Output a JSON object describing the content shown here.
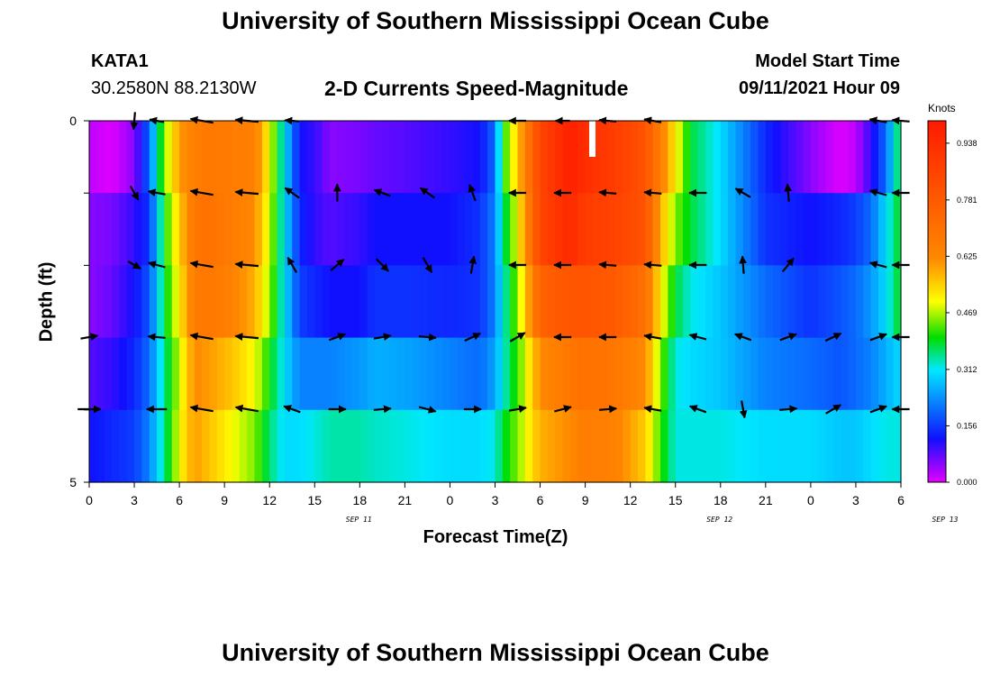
{
  "header": {
    "title": "University of Southern Mississippi Ocean Cube",
    "footer_title": "University of Southern Mississippi Ocean Cube",
    "station": "KATA1",
    "coordinates": "30.2580N  88.2130W",
    "plot_title": "2-D Currents Speed-Magnitude",
    "model_start_label": "Model Start Time",
    "model_start_value": "09/11/2021 Hour 09"
  },
  "colors": {
    "magenta": "#e000ff",
    "blue": "#1010ff",
    "cyan": "#00e8ff",
    "green": "#00dd00",
    "yellow": "#ffff00",
    "orange": "#ff8800",
    "red": "#ff1a00"
  },
  "chart_data": {
    "type": "heatmap",
    "title": "2-D Currents Speed-Magnitude",
    "xlabel": "Forecast Time(Z)",
    "ylabel": "Depth (ft)",
    "units": "Knots",
    "ylim": [
      0,
      5
    ],
    "y_tick_labels": [
      "0",
      "5"
    ],
    "x_tick_labels": [
      "0",
      "3",
      "6",
      "9",
      "12",
      "15",
      "18",
      "21",
      "0",
      "3",
      "6",
      "9",
      "12",
      "15",
      "18",
      "21",
      "0",
      "3",
      "6"
    ],
    "date_labels": [
      {
        "hour_index": 12,
        "label": "SEP 11"
      },
      {
        "hour_index": 36,
        "label": "SEP 12"
      },
      {
        "hour_index": 60,
        "label": "SEP 13"
      }
    ],
    "x_range_hours": [
      0,
      54
    ],
    "colorbar": {
      "range": [
        0,
        1.0
      ],
      "tick_labels": [
        "0.938",
        "0.781",
        "0.625",
        "0.469",
        "0.312",
        "0.156",
        "0.000"
      ],
      "tick_values": [
        0.938,
        0.781,
        0.625,
        0.469,
        0.312,
        0.156,
        0.0
      ]
    },
    "depth_levels": 5,
    "time_keypoints": [
      0,
      1.5,
      3,
      4,
      5,
      6,
      7,
      8,
      9.5,
      11,
      12,
      13,
      14,
      15,
      16,
      18,
      19,
      21,
      24,
      26,
      27,
      27.5,
      28.5,
      30,
      32,
      33,
      35,
      37,
      38,
      39,
      40,
      42,
      45,
      48,
      50,
      51,
      52,
      53,
      54
    ],
    "speed": [
      [
        0.02,
        0.0,
        0.05,
        0.2,
        0.45,
        0.6,
        0.65,
        0.68,
        0.66,
        0.65,
        0.5,
        0.3,
        0.12,
        0.1,
        0.05,
        0.06,
        0.07,
        0.08,
        0.1,
        0.12,
        0.2,
        0.4,
        0.55,
        0.85,
        0.98,
        0.93,
        0.88,
        0.8,
        0.65,
        0.52,
        0.38,
        0.3,
        0.14,
        0.05,
        0.0,
        0.02,
        0.1,
        0.2,
        0.4
      ],
      [
        0.05,
        0.06,
        0.1,
        0.15,
        0.4,
        0.55,
        0.68,
        0.7,
        0.66,
        0.62,
        0.48,
        0.3,
        0.14,
        0.1,
        0.08,
        0.1,
        0.12,
        0.12,
        0.12,
        0.15,
        0.22,
        0.35,
        0.5,
        0.85,
        0.95,
        0.88,
        0.86,
        0.8,
        0.58,
        0.45,
        0.38,
        0.3,
        0.15,
        0.12,
        0.14,
        0.16,
        0.2,
        0.3,
        0.4
      ],
      [
        0.05,
        0.07,
        0.12,
        0.18,
        0.38,
        0.52,
        0.66,
        0.68,
        0.64,
        0.58,
        0.46,
        0.3,
        0.16,
        0.14,
        0.12,
        0.12,
        0.15,
        0.15,
        0.14,
        0.15,
        0.22,
        0.32,
        0.45,
        0.75,
        0.8,
        0.8,
        0.78,
        0.7,
        0.52,
        0.38,
        0.32,
        0.28,
        0.2,
        0.15,
        0.18,
        0.2,
        0.24,
        0.3,
        0.4
      ],
      [
        0.08,
        0.1,
        0.14,
        0.2,
        0.35,
        0.48,
        0.62,
        0.6,
        0.56,
        0.5,
        0.4,
        0.3,
        0.22,
        0.22,
        0.22,
        0.24,
        0.26,
        0.25,
        0.22,
        0.2,
        0.25,
        0.32,
        0.42,
        0.62,
        0.68,
        0.7,
        0.68,
        0.62,
        0.45,
        0.32,
        0.3,
        0.28,
        0.22,
        0.2,
        0.18,
        0.2,
        0.22,
        0.26,
        0.3
      ],
      [
        0.12,
        0.14,
        0.16,
        0.22,
        0.35,
        0.5,
        0.6,
        0.56,
        0.5,
        0.45,
        0.36,
        0.3,
        0.3,
        0.32,
        0.34,
        0.34,
        0.33,
        0.32,
        0.3,
        0.3,
        0.32,
        0.38,
        0.45,
        0.58,
        0.62,
        0.66,
        0.64,
        0.55,
        0.42,
        0.32,
        0.32,
        0.32,
        0.3,
        0.3,
        0.28,
        0.28,
        0.3,
        0.32,
        0.32
      ]
    ],
    "vectors": {
      "hours": [
        0,
        3,
        4.5,
        7.5,
        10.5,
        13.5,
        16.5,
        19.5,
        22.5,
        25.5,
        28.5,
        31.5,
        34.5,
        37.5,
        40.5,
        43.5,
        46.5,
        49.5,
        52.5,
        54
      ],
      "note": "angles in degrees (math convention, 0=east, 90=north); length relative 0-1; null = no arrow",
      "rows": [
        [
          [
            0,
            0
          ],
          [
            -95,
            0.6
          ],
          [
            170,
            0.5
          ],
          [
            170,
            0.8
          ],
          [
            175,
            0.8
          ],
          [
            175,
            0.5
          ],
          [
            null,
            0
          ],
          [
            null,
            0
          ],
          [
            null,
            0
          ],
          [
            null,
            0
          ],
          [
            180,
            0.6
          ],
          [
            180,
            0.5
          ],
          [
            175,
            0.6
          ],
          [
            170,
            0.6
          ],
          [
            null,
            0
          ],
          [
            null,
            0
          ],
          [
            null,
            0
          ],
          [
            null,
            0
          ],
          [
            170,
            0.6
          ],
          [
            175,
            0.6
          ]
        ],
        [
          [
            0,
            0
          ],
          [
            -60,
            0.55
          ],
          [
            170,
            0.6
          ],
          [
            170,
            0.8
          ],
          [
            175,
            0.8
          ],
          [
            145,
            0.6
          ],
          [
            90,
            0.6
          ],
          [
            160,
            0.6
          ],
          [
            145,
            0.6
          ],
          [
            110,
            0.6
          ],
          [
            180,
            0.6
          ],
          [
            180,
            0.6
          ],
          [
            175,
            0.6
          ],
          [
            175,
            0.6
          ],
          [
            180,
            0.6
          ],
          [
            150,
            0.6
          ],
          [
            95,
            0.6
          ],
          [
            null,
            0
          ],
          [
            165,
            0.6
          ],
          [
            180,
            0.6
          ]
        ],
        [
          [
            0,
            0
          ],
          [
            -30,
            0.5
          ],
          [
            165,
            0.6
          ],
          [
            170,
            0.8
          ],
          [
            175,
            0.8
          ],
          [
            120,
            0.6
          ],
          [
            40,
            0.6
          ],
          [
            -45,
            0.6
          ],
          [
            -60,
            0.6
          ],
          [
            80,
            0.6
          ],
          [
            180,
            0.6
          ],
          [
            180,
            0.6
          ],
          [
            175,
            0.6
          ],
          [
            175,
            0.6
          ],
          [
            180,
            0.6
          ],
          [
            95,
            0.6
          ],
          [
            50,
            0.6
          ],
          [
            null,
            0
          ],
          [
            165,
            0.6
          ],
          [
            180,
            0.6
          ]
        ],
        [
          [
            10,
            0.6
          ],
          [
            null,
            0
          ],
          [
            175,
            0.6
          ],
          [
            170,
            0.8
          ],
          [
            175,
            0.8
          ],
          [
            null,
            0
          ],
          [
            20,
            0.6
          ],
          [
            10,
            0.6
          ],
          [
            -5,
            0.6
          ],
          [
            25,
            0.6
          ],
          [
            30,
            0.6
          ],
          [
            180,
            0.6
          ],
          [
            180,
            0.6
          ],
          [
            170,
            0.6
          ],
          [
            165,
            0.6
          ],
          [
            160,
            0.6
          ],
          [
            20,
            0.6
          ],
          [
            25,
            0.6
          ],
          [
            20,
            0.6
          ],
          [
            180,
            0.6
          ]
        ],
        [
          [
            0,
            0.8
          ],
          [
            null,
            0
          ],
          [
            180,
            0.7
          ],
          [
            170,
            0.8
          ],
          [
            170,
            0.8
          ],
          [
            160,
            0.6
          ],
          [
            0,
            0.6
          ],
          [
            5,
            0.6
          ],
          [
            -15,
            0.6
          ],
          [
            0,
            0.6
          ],
          [
            10,
            0.6
          ],
          [
            15,
            0.6
          ],
          [
            5,
            0.6
          ],
          [
            170,
            0.6
          ],
          [
            160,
            0.6
          ],
          [
            -80,
            0.6
          ],
          [
            5,
            0.6
          ],
          [
            30,
            0.6
          ],
          [
            20,
            0.6
          ],
          [
            180,
            0.6
          ]
        ]
      ]
    }
  }
}
